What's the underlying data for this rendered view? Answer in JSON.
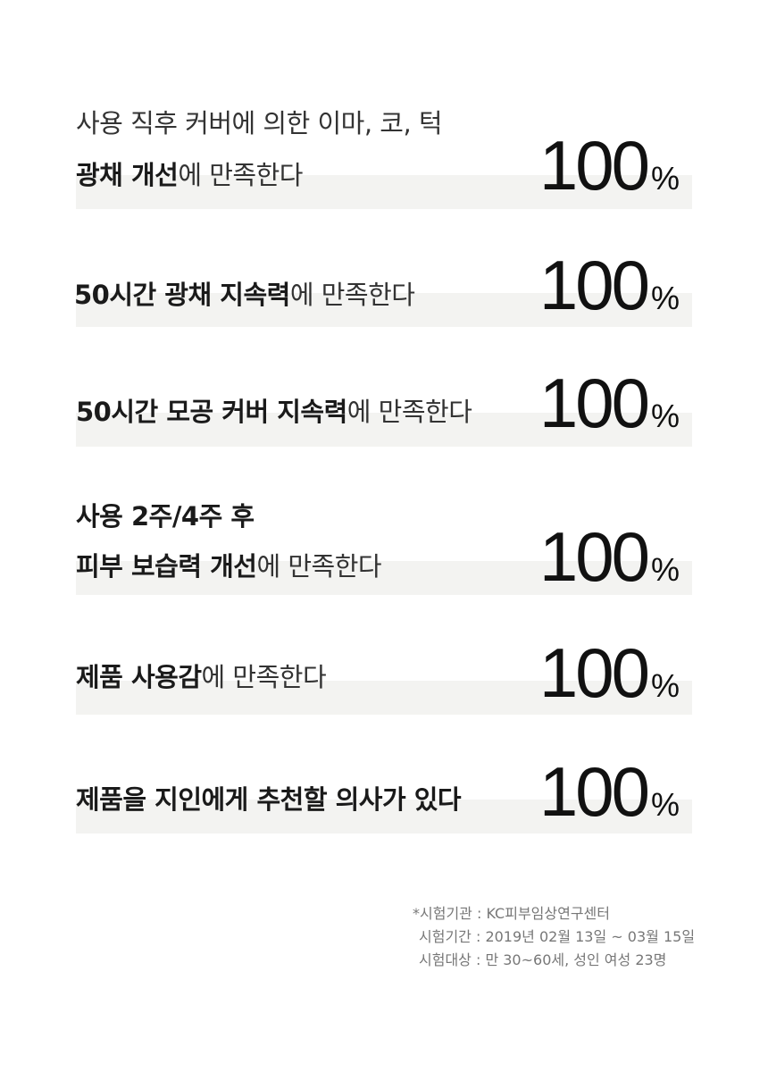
{
  "rows": [
    {
      "line1": "사용 직후 커버에 의한 이마, 코, 턱",
      "bold": "광채 개선",
      "rest": "에 만족한다",
      "value": "100",
      "unit": "%"
    },
    {
      "bold": "50시간 광채 지속력",
      "rest": "에 만족한다",
      "value": "100",
      "unit": "%"
    },
    {
      "bold": "50시간 모공 커버 지속력",
      "rest": "에 만족한다",
      "value": "100",
      "unit": "%"
    },
    {
      "line1": "사용 2주/4주 후",
      "bold": "피부 보습력 개선",
      "rest": "에 만족한다",
      "value": "100",
      "unit": "%"
    },
    {
      "bold": "제품 사용감",
      "rest": "에 만족한다",
      "value": "100",
      "unit": "%"
    },
    {
      "bold": "제품을 지인에게 추천할 의사가 있다",
      "rest": "",
      "value": "100",
      "unit": "%"
    }
  ],
  "notes": {
    "institution": "*시험기관 : KC피부임상연구센터",
    "period": "시험기간 : 2019년 02월 13일 ~ 03월 15일",
    "subjects": "시험대상 : 만 30~60세, 성인 여성 23명"
  }
}
